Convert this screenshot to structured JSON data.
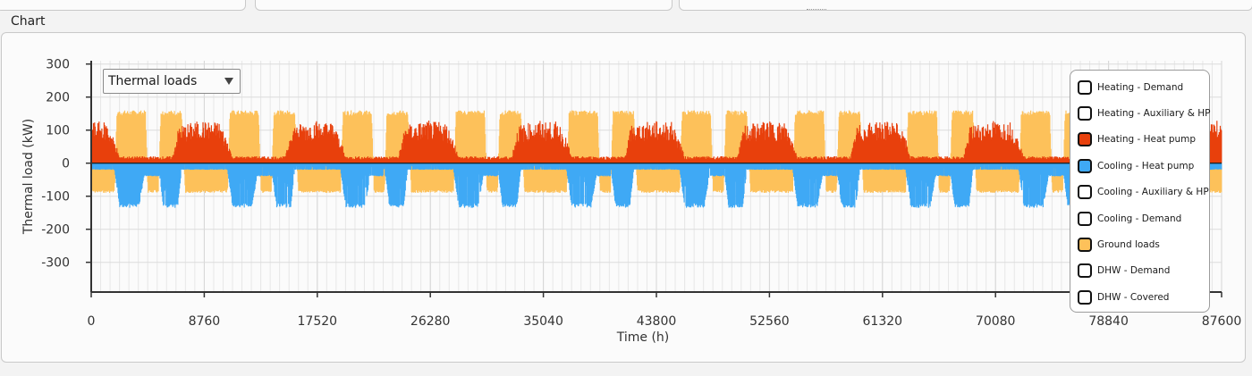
{
  "section_title": "Chart",
  "dropdown": {
    "selected": "Thermal loads"
  },
  "legend": [
    {
      "label": "Heating - Demand",
      "checked": false,
      "color": "#ffffff"
    },
    {
      "label": "Heating - Auxiliary & HP",
      "checked": false,
      "color": "#ffffff"
    },
    {
      "label": "Heating - Heat pump",
      "checked": true,
      "color": "#e8400c"
    },
    {
      "label": "Cooling - Heat pump",
      "checked": true,
      "color": "#3fa9f5"
    },
    {
      "label": "Cooling - Auxiliary & HP",
      "checked": false,
      "color": "#ffffff"
    },
    {
      "label": "Cooling - Demand",
      "checked": false,
      "color": "#ffffff"
    },
    {
      "label": "Ground loads",
      "checked": true,
      "color": "#fdc15a"
    },
    {
      "label": "DHW - Demand",
      "checked": false,
      "color": "#ffffff"
    },
    {
      "label": "DHW - Covered",
      "checked": false,
      "color": "#ffffff"
    }
  ],
  "chart_data": {
    "type": "area",
    "xlabel": "Time (h)",
    "ylabel": "Thermal load (kW)",
    "xlim": [
      0,
      87600
    ],
    "ylim": [
      -390,
      310
    ],
    "xticks": [
      0,
      8760,
      17520,
      26280,
      35040,
      43800,
      52560,
      61320,
      70080,
      78840,
      87600
    ],
    "yticks": [
      300,
      200,
      100,
      0,
      -100,
      -200,
      -300
    ],
    "grid": true,
    "years": 10,
    "hours_per_year": 8760,
    "series": [
      {
        "name": "Heating - Heat pump",
        "color": "#e8400c",
        "sign": "positive",
        "seasonal_profile": [
          {
            "hour": 0,
            "peak_kw": 120
          },
          {
            "hour": 1200,
            "peak_kw": 120
          },
          {
            "hour": 1900,
            "peak_kw": 60
          },
          {
            "hour": 2150,
            "peak_kw": 20
          },
          {
            "hour": 6300,
            "peak_kw": 20
          },
          {
            "hour": 6800,
            "peak_kw": 110
          },
          {
            "hour": 8760,
            "peak_kw": 125
          }
        ]
      },
      {
        "name": "Cooling - Heat pump",
        "color": "#3fa9f5",
        "sign": "negative",
        "seasonal_profile": [
          {
            "hour": 0,
            "peak_kw": -20
          },
          {
            "hour": 1800,
            "peak_kw": -20
          },
          {
            "hour": 2200,
            "peak_kw": -135
          },
          {
            "hour": 3700,
            "peak_kw": -135
          },
          {
            "hour": 4100,
            "peak_kw": -40
          },
          {
            "hour": 5300,
            "peak_kw": -40
          },
          {
            "hour": 5600,
            "peak_kw": -135
          },
          {
            "hour": 6700,
            "peak_kw": -135
          },
          {
            "hour": 7000,
            "peak_kw": -20
          },
          {
            "hour": 8760,
            "peak_kw": -20
          }
        ]
      },
      {
        "name": "Ground loads",
        "color": "#fdc15a",
        "sign": "both",
        "seasonal_profile": [
          {
            "hour": 0,
            "peak_kw": -90
          },
          {
            "hour": 1800,
            "peak_kw": -90
          },
          {
            "hour": 2000,
            "peak_kw": 160
          },
          {
            "hour": 4200,
            "peak_kw": 160
          },
          {
            "hour": 4400,
            "peak_kw": -90
          },
          {
            "hour": 5200,
            "peak_kw": -90
          },
          {
            "hour": 5400,
            "peak_kw": 160
          },
          {
            "hour": 7000,
            "peak_kw": 160
          },
          {
            "hour": 7300,
            "peak_kw": -90
          },
          {
            "hour": 8760,
            "peak_kw": -90
          }
        ]
      }
    ]
  }
}
